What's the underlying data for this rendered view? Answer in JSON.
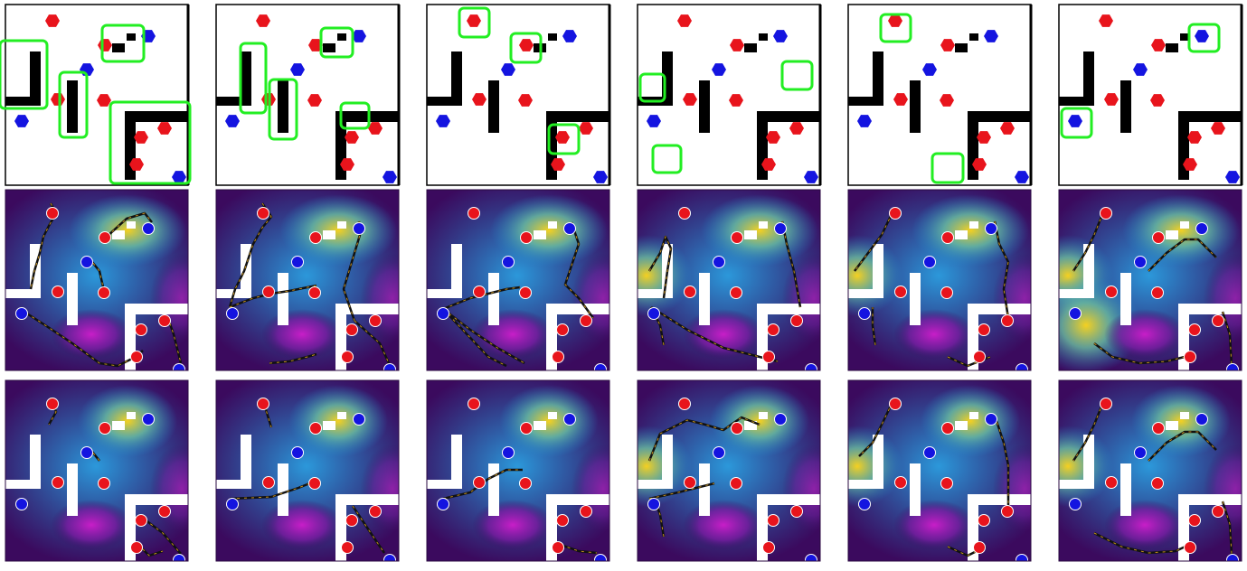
{
  "figure": {
    "rows": [
      {
        "kind": "layout",
        "name": "environment-layout"
      },
      {
        "kind": "heatmap-with-paths",
        "name": "value-map-a"
      },
      {
        "kind": "heatmap-with-paths",
        "name": "value-map-b"
      }
    ],
    "columns": 6
  },
  "colors": {
    "wall": "#000000",
    "red_agent": "#e8141c",
    "blue_agent": "#1414e0",
    "highlight": "#22ee22",
    "path": "#111111",
    "heatmap_low": "#3b0a5e",
    "heatmap_mid": "#1e8fd0",
    "heatmap_high": "#f5d020",
    "heatmap_peak": "#c81ec8"
  },
  "icons": {
    "red_agent": "red-hexagon-icon",
    "blue_agent": "blue-hexagon-icon",
    "red_marker": "red-circle-icon",
    "blue_marker": "blue-circle-icon"
  },
  "panels": [
    {
      "highlights": [
        [
          0,
          45,
          52,
          75
        ],
        [
          66,
          80,
          30,
          72
        ],
        [
          113,
          28,
          46,
          40
        ],
        [
          122,
          113,
          88,
          90
        ]
      ],
      "paths_a": [
        [
          [
            56,
            225
          ],
          [
            62,
            236
          ],
          [
            54,
            250
          ],
          [
            48,
            262
          ],
          [
            44,
            280
          ],
          [
            38,
            300
          ],
          [
            34,
            320
          ]
        ],
        [
          [
            22,
            342
          ],
          [
            50,
            360
          ],
          [
            80,
            380
          ],
          [
            110,
            402
          ],
          [
            130,
            405
          ],
          [
            150,
            395
          ],
          [
            158,
            388
          ]
        ],
        [
          [
            185,
            350
          ],
          [
            192,
            370
          ],
          [
            200,
            402
          ]
        ],
        [
          [
            118,
            262
          ],
          [
            140,
            242
          ],
          [
            160,
            236
          ],
          [
            168,
            246
          ]
        ],
        [
          [
            98,
            285
          ],
          [
            110,
            300
          ],
          [
            115,
            322
          ]
        ]
      ],
      "paths_b": [
        [
          [
            56,
            440
          ],
          [
            62,
            456
          ],
          [
            54,
            470
          ]
        ],
        [
          [
            98,
            495
          ],
          [
            110,
            510
          ]
        ],
        [
          [
            160,
            575
          ],
          [
            180,
            590
          ],
          [
            200,
            613
          ]
        ],
        [
          [
            152,
            602
          ],
          [
            165,
            615
          ],
          [
            180,
            610
          ]
        ]
      ]
    },
    {
      "highlights": [
        [
          266,
          48,
          28,
          77
        ],
        [
          298,
          88,
          30,
          66
        ],
        [
          355,
          31,
          35,
          32
        ],
        [
          377,
          114,
          31,
          28
        ]
      ],
      "paths_a": [
        [
          [
            290,
            225
          ],
          [
            300,
            240
          ],
          [
            290,
            252
          ],
          [
            280,
            270
          ],
          [
            270,
            300
          ],
          [
            260,
            320
          ],
          [
            254,
            340
          ]
        ],
        [
          [
            254,
            340
          ],
          [
            280,
            330
          ],
          [
            300,
            325
          ],
          [
            320,
            322
          ],
          [
            340,
            318
          ],
          [
            350,
            316
          ]
        ],
        [
          [
            397,
            245
          ],
          [
            398,
            260
          ],
          [
            392,
            280
          ],
          [
            386,
            300
          ],
          [
            380,
            320
          ],
          [
            392,
            355
          ]
        ],
        [
          [
            298,
            402
          ],
          [
            320,
            400
          ],
          [
            340,
            395
          ],
          [
            350,
            392
          ]
        ],
        [
          [
            392,
            355
          ],
          [
            420,
            380
          ],
          [
            430,
            402
          ]
        ]
      ],
      "paths_b": [
        [
          [
            290,
            440
          ],
          [
            296,
            460
          ],
          [
            300,
            473
          ]
        ],
        [
          [
            254,
            552
          ],
          [
            300,
            550
          ],
          [
            330,
            540
          ],
          [
            350,
            532
          ]
        ],
        [
          [
            390,
            560
          ],
          [
            410,
            590
          ],
          [
            425,
            612
          ]
        ]
      ]
    },
    {
      "highlights": [
        [
          508,
          9,
          33,
          32
        ],
        [
          565,
          37,
          33,
          32
        ],
        [
          607,
          138,
          33,
          32
        ]
      ],
      "paths_a": [
        [
          [
            490,
            342
          ],
          [
            520,
            330
          ],
          [
            540,
            325
          ],
          [
            560,
            320
          ],
          [
            575,
            318
          ]
        ],
        [
          [
            490,
            342
          ],
          [
            520,
            365
          ],
          [
            550,
            385
          ],
          [
            580,
            402
          ]
        ],
        [
          [
            632,
            246
          ],
          [
            640,
            270
          ],
          [
            630,
            300
          ],
          [
            625,
            315
          ],
          [
            640,
            330
          ],
          [
            656,
            352
          ]
        ],
        [
          [
            490,
            342
          ],
          [
            540,
            395
          ],
          [
            560,
            405
          ]
        ]
      ],
      "paths_b": [
        [
          [
            490,
            552
          ],
          [
            520,
            545
          ],
          [
            540,
            530
          ],
          [
            560,
            520
          ],
          [
            578,
            520
          ]
        ],
        [
          [
            620,
            603
          ],
          [
            640,
            610
          ],
          [
            660,
            612
          ]
        ]
      ]
    },
    {
      "highlights": [
        [
          708,
          82,
          27,
          30
        ],
        [
          865,
          68,
          33,
          31
        ],
        [
          722,
          161,
          31,
          30
        ]
      ],
      "paths_a": [
        [
          [
            718,
            300
          ],
          [
            730,
            280
          ],
          [
            736,
            262
          ],
          [
            742,
            275
          ],
          [
            738,
            300
          ],
          [
            734,
            330
          ]
        ],
        [
          [
            720,
            340
          ],
          [
            760,
            365
          ],
          [
            800,
            385
          ],
          [
            840,
            395
          ],
          [
            860,
            400
          ]
        ],
        [
          [
            865,
            245
          ],
          [
            870,
            270
          ],
          [
            878,
            300
          ],
          [
            885,
            340
          ]
        ],
        [
          [
            734,
            382
          ],
          [
            730,
            360
          ],
          [
            720,
            340
          ]
        ]
      ],
      "paths_b": [
        [
          [
            718,
            510
          ],
          [
            730,
            480
          ],
          [
            760,
            465
          ],
          [
            780,
            470
          ],
          [
            800,
            476
          ],
          [
            820,
            462
          ],
          [
            840,
            470
          ]
        ],
        [
          [
            718,
            552
          ],
          [
            750,
            545
          ],
          [
            770,
            540
          ],
          [
            790,
            535
          ]
        ],
        [
          [
            734,
            594
          ],
          [
            730,
            570
          ],
          [
            725,
            555
          ]
        ]
      ]
    },
    {
      "highlights": [
        [
          974,
          16,
          33,
          30
        ],
        [
          1031,
          170,
          34,
          32
        ]
      ],
      "paths_a": [
        [
          [
            987,
            235
          ],
          [
            975,
            260
          ],
          [
            960,
            280
          ],
          [
            945,
            300
          ]
        ],
        [
          [
            1048,
            395
          ],
          [
            1070,
            405
          ],
          [
            1095,
            395
          ]
        ],
        [
          [
            1100,
            245
          ],
          [
            1105,
            270
          ],
          [
            1115,
            290
          ],
          [
            1110,
            320
          ],
          [
            1115,
            352
          ]
        ],
        [
          [
            968,
            382
          ],
          [
            965,
            360
          ],
          [
            965,
            340
          ]
        ]
      ],
      "paths_b": [
        [
          [
            987,
            445
          ],
          [
            975,
            470
          ],
          [
            965,
            490
          ],
          [
            950,
            505
          ]
        ],
        [
          [
            1048,
            605
          ],
          [
            1070,
            615
          ],
          [
            1090,
            605
          ]
        ],
        [
          [
            1100,
            460
          ],
          [
            1110,
            490
          ],
          [
            1115,
            515
          ],
          [
            1115,
            560
          ]
        ]
      ]
    },
    {
      "highlights": [
        [
          1315,
          27,
          33,
          30
        ],
        [
          1174,
          120,
          33,
          32
        ]
      ],
      "paths_a": [
        [
          [
            1220,
            235
          ],
          [
            1210,
            260
          ],
          [
            1200,
            280
          ],
          [
            1187,
            300
          ]
        ],
        [
          [
            1270,
            300
          ],
          [
            1290,
            280
          ],
          [
            1310,
            265
          ],
          [
            1325,
            265
          ],
          [
            1345,
            285
          ]
        ],
        [
          [
            1210,
            380
          ],
          [
            1230,
            395
          ],
          [
            1260,
            402
          ],
          [
            1290,
            400
          ],
          [
            1310,
            395
          ]
        ],
        [
          [
            1352,
            345
          ],
          [
            1360,
            370
          ],
          [
            1362,
            405
          ]
        ]
      ],
      "paths_b": [
        [
          [
            1220,
            445
          ],
          [
            1210,
            470
          ],
          [
            1200,
            490
          ],
          [
            1187,
            510
          ]
        ],
        [
          [
            1270,
            510
          ],
          [
            1290,
            490
          ],
          [
            1310,
            478
          ],
          [
            1325,
            478
          ],
          [
            1345,
            498
          ]
        ],
        [
          [
            1210,
            590
          ],
          [
            1240,
            605
          ],
          [
            1270,
            612
          ],
          [
            1300,
            610
          ],
          [
            1315,
            603
          ]
        ],
        [
          [
            1352,
            555
          ],
          [
            1360,
            580
          ],
          [
            1362,
            613
          ]
        ]
      ]
    }
  ]
}
